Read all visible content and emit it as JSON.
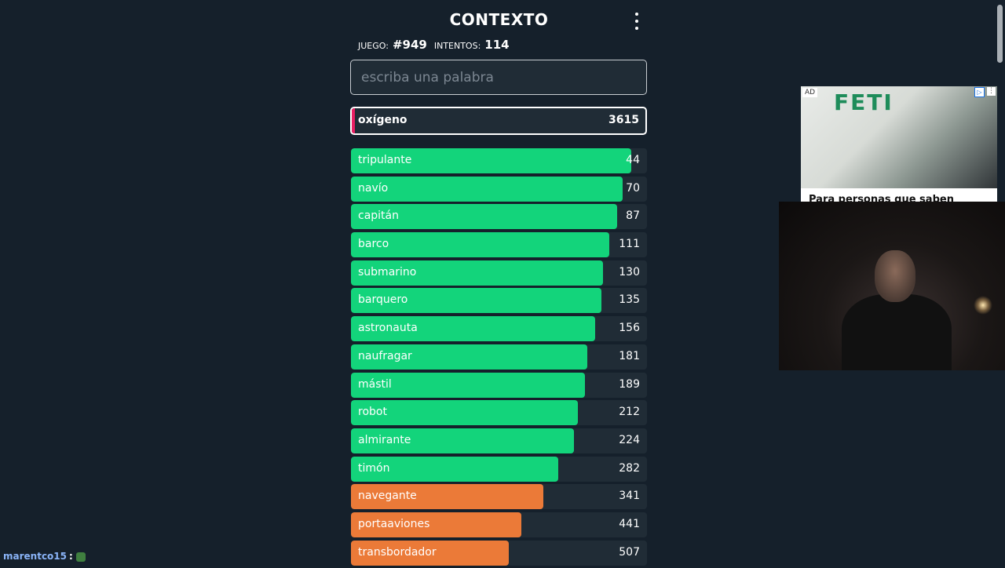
{
  "header": {
    "title": "CONTEXTO"
  },
  "stats": {
    "game_label": "JUEGO:",
    "game_value": "#949",
    "attempts_label": "INTENTOS:",
    "attempts_value": "114"
  },
  "search": {
    "placeholder": "escriba una palabra",
    "value": ""
  },
  "last_guess": {
    "word": "oxígeno",
    "rank": "3615",
    "accent_color": "#e91e63"
  },
  "colors": {
    "green": "#13d47b",
    "orange": "#eb7a38",
    "row_bg": "#202c36",
    "page_bg": "#15202b"
  },
  "guesses": [
    {
      "word": "tripulante",
      "rank": "44",
      "color": "green",
      "fill": 0.947
    },
    {
      "word": "navío",
      "rank": "70",
      "color": "green",
      "fill": 0.918
    },
    {
      "word": "capitán",
      "rank": "87",
      "color": "green",
      "fill": 0.899
    },
    {
      "word": "barco",
      "rank": "111",
      "color": "green",
      "fill": 0.873
    },
    {
      "word": "submarino",
      "rank": "130",
      "color": "green",
      "fill": 0.852
    },
    {
      "word": "barquero",
      "rank": "135",
      "color": "green",
      "fill": 0.847
    },
    {
      "word": "astronauta",
      "rank": "156",
      "color": "green",
      "fill": 0.825
    },
    {
      "word": "naufragar",
      "rank": "181",
      "color": "green",
      "fill": 0.798
    },
    {
      "word": "mástil",
      "rank": "189",
      "color": "green",
      "fill": 0.79
    },
    {
      "word": "robot",
      "rank": "212",
      "color": "green",
      "fill": 0.767
    },
    {
      "word": "almirante",
      "rank": "224",
      "color": "green",
      "fill": 0.754
    },
    {
      "word": "timón",
      "rank": "282",
      "color": "green",
      "fill": 0.7
    },
    {
      "word": "navegante",
      "rank": "341",
      "color": "orange",
      "fill": 0.65
    },
    {
      "word": "portaaviones",
      "rank": "441",
      "color": "orange",
      "fill": 0.575
    },
    {
      "word": "transbordador",
      "rank": "507",
      "color": "orange",
      "fill": 0.532
    }
  ],
  "ad": {
    "badge": "AD",
    "brand": "FETI",
    "headline": "Para personas que saben",
    "info_icon": "info-icon",
    "close_icon": "close-icon"
  },
  "chat": {
    "username": "marentco15",
    "separator": ":"
  }
}
